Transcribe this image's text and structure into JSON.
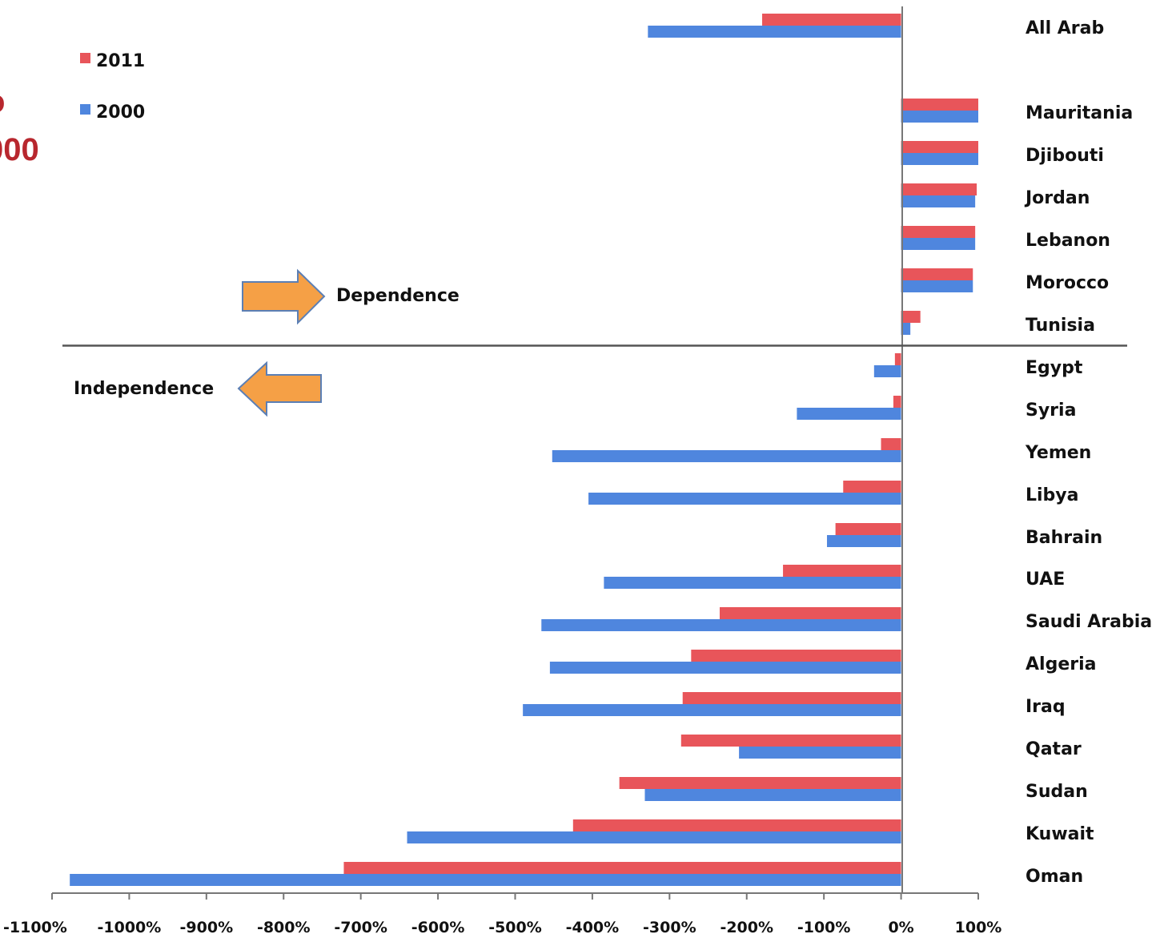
{
  "title_fragment": [
    "o",
    "000"
  ],
  "annotations": {
    "dependence": "Dependence",
    "independence": "Independence"
  },
  "colors": {
    "series_2011": "#e8555a",
    "series_2000": "#4f86de",
    "arrow_fill": "#f5a046",
    "arrow_stroke": "#5b7fb5",
    "title_red": "#b8272e"
  },
  "chart_data": {
    "type": "bar",
    "orientation": "horizontal",
    "categories": [
      "All Arab",
      "Mauritania",
      "Djibouti",
      "Jordan",
      "Lebanon",
      "Morocco",
      "Tunisia",
      "Egypt",
      "Syria",
      "Yemen",
      "Libya",
      "Bahrain",
      "UAE",
      "Saudi Arabia",
      "Algeria",
      "Iraq",
      "Qatar",
      "Sudan",
      "Kuwait",
      "Oman"
    ],
    "gap_after_index": 0,
    "divider_after_index": 6,
    "series": [
      {
        "name": "2011",
        "values": [
          -180,
          100,
          100,
          98,
          96,
          93,
          25,
          -8,
          -10,
          -26,
          -75,
          -85,
          -153,
          -235,
          -272,
          -283,
          -285,
          -365,
          -425,
          -722
        ]
      },
      {
        "name": "2000",
        "values": [
          -328,
          100,
          100,
          96,
          96,
          93,
          12,
          -35,
          -135,
          -452,
          -405,
          -96,
          -385,
          -466,
          -455,
          -490,
          -210,
          -332,
          -640,
          -1077
        ]
      }
    ],
    "xlim": [
      -1100,
      100
    ],
    "xticks": [
      -1100,
      -1000,
      -900,
      -800,
      -700,
      -600,
      -500,
      -400,
      -300,
      -200,
      -100,
      0,
      100
    ],
    "xtick_labels": [
      "-1100%",
      "-1000%",
      "-900%",
      "-800%",
      "-700%",
      "-600%",
      "-500%",
      "-400%",
      "-300%",
      "-200%",
      "-100%",
      "0%",
      "100%"
    ],
    "legend": {
      "position": "top-left",
      "entries": [
        "2011",
        "2000"
      ]
    },
    "grid": false
  }
}
